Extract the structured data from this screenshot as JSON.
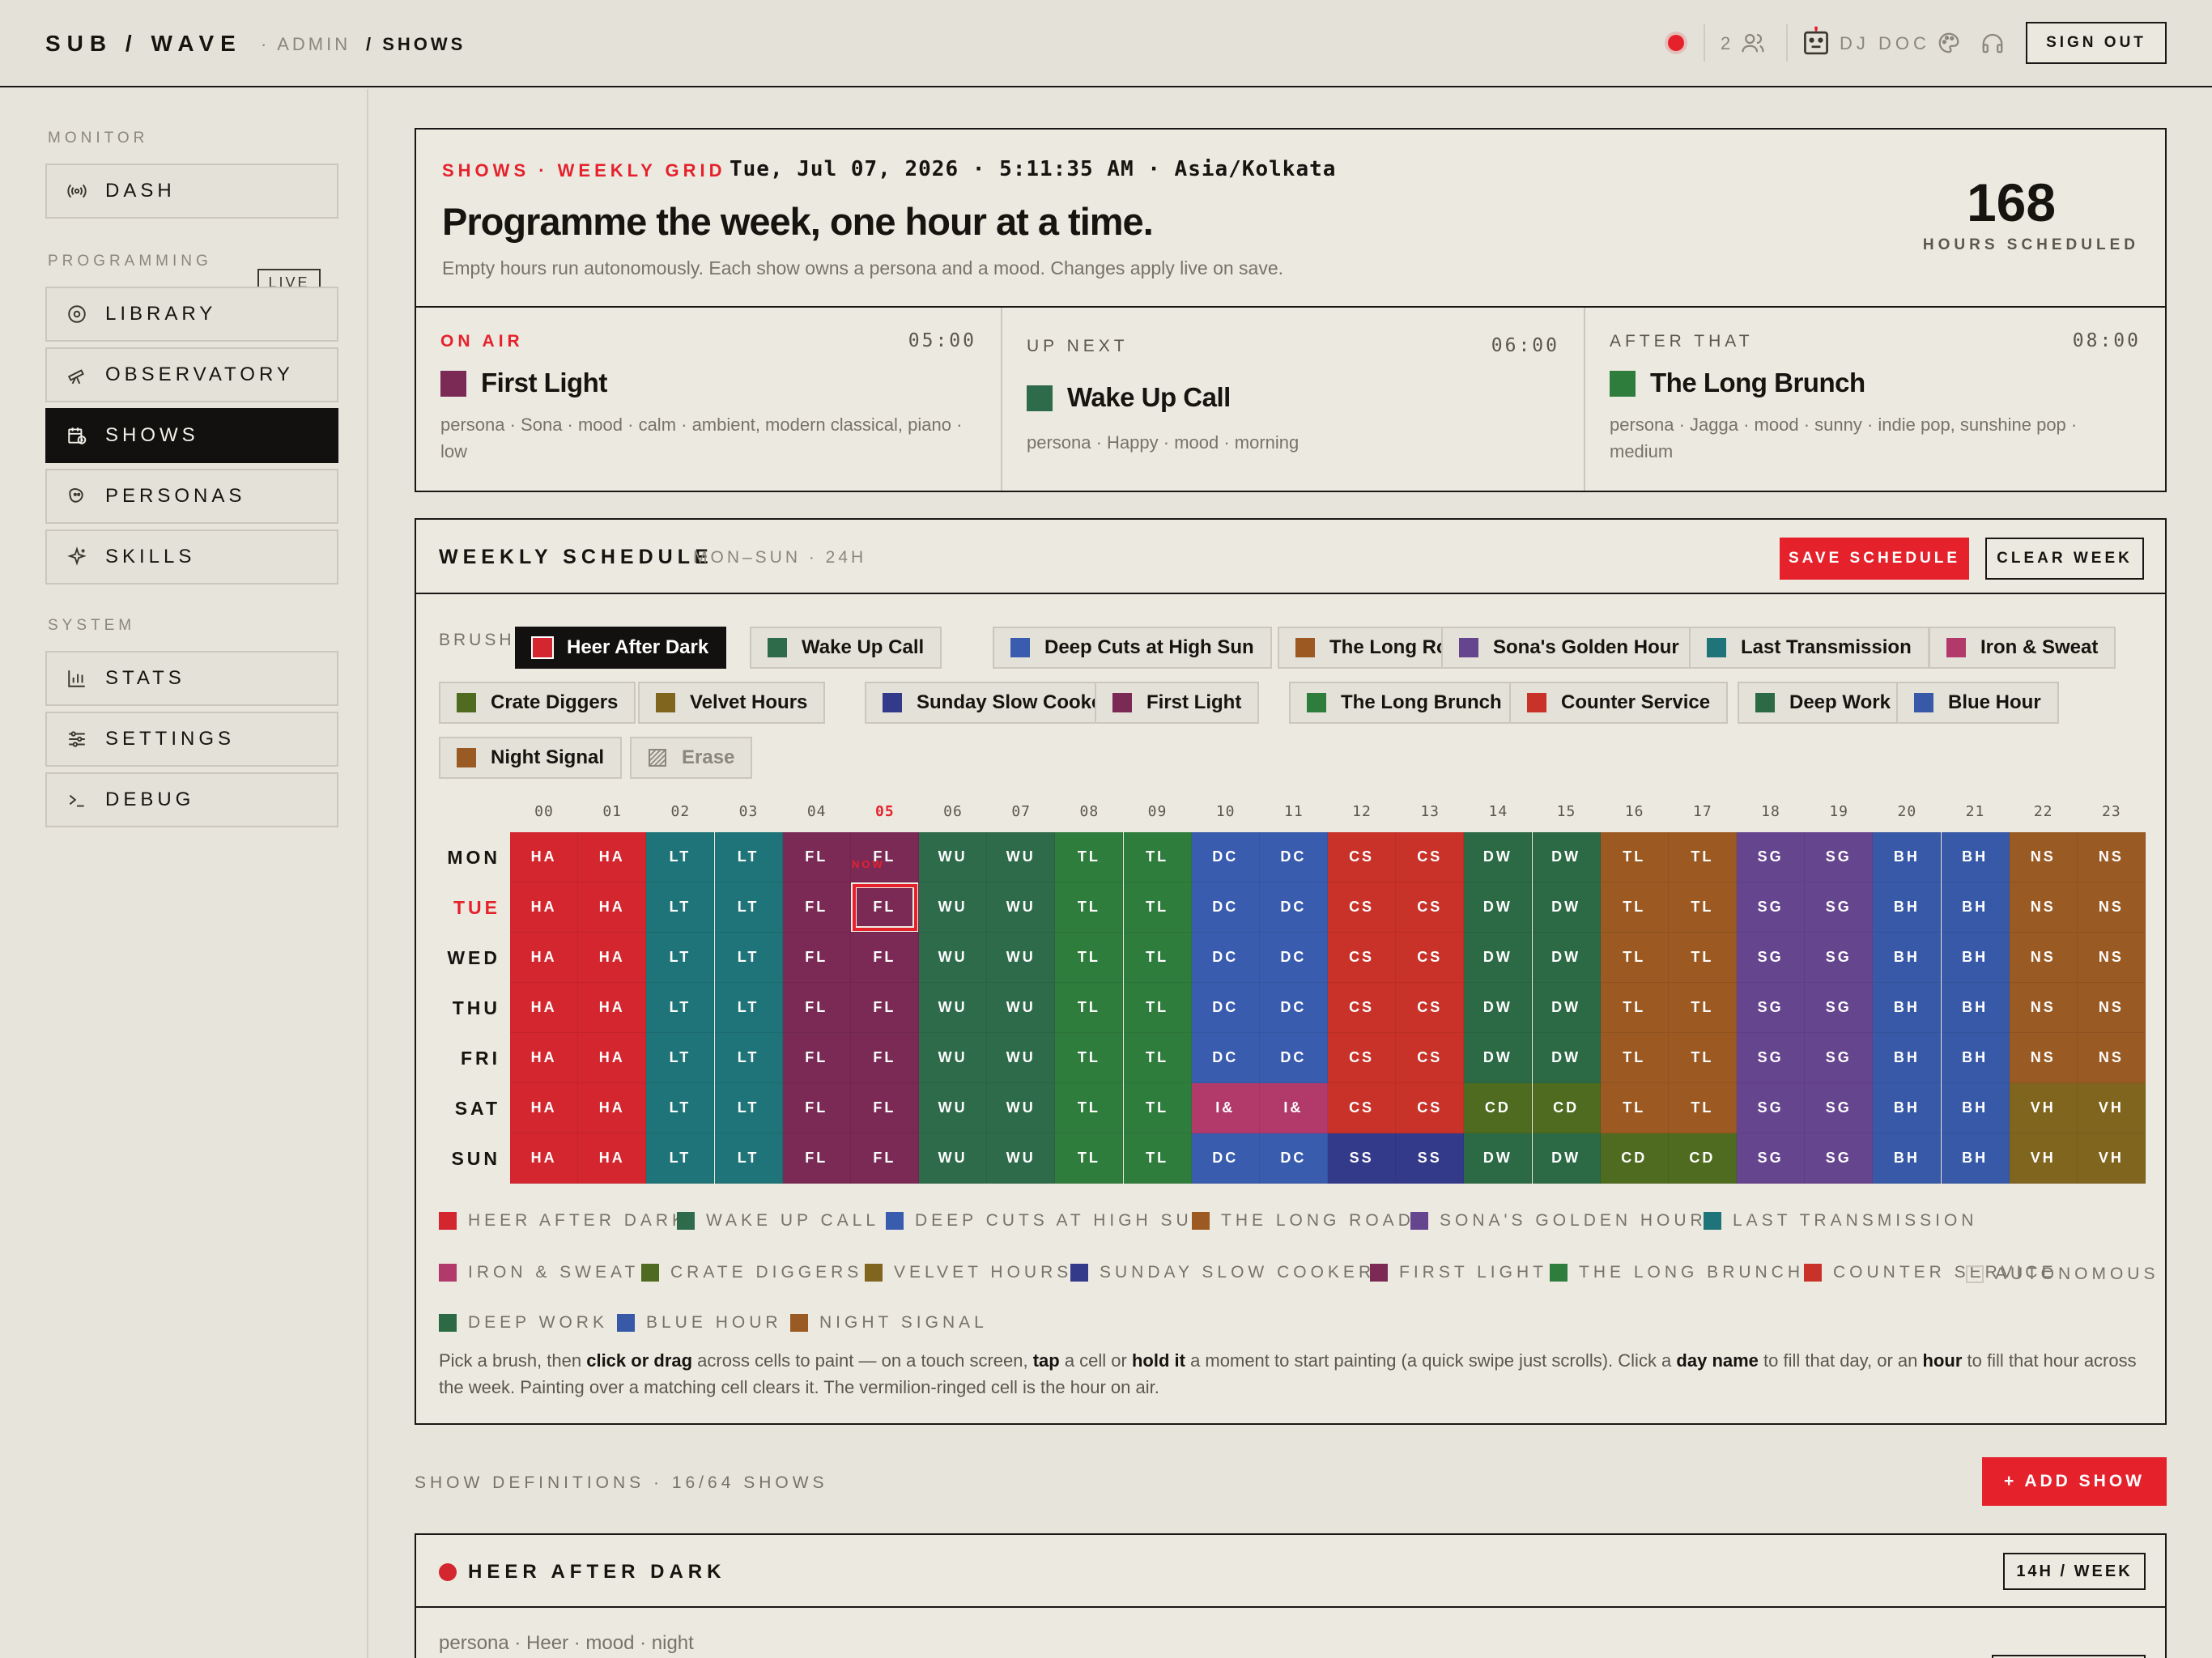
{
  "topbar": {
    "brand": "SUB / WAVE",
    "crumb_admin": "· ADMIN",
    "crumb_shows": "/ SHOWS",
    "listeners": "2",
    "dj_name": "DJ DOC",
    "sign_out": "SIGN OUT",
    "icons": [
      "record-dot-icon",
      "listeners-icon",
      "robot-icon",
      "palette-icon",
      "headphones-icon"
    ]
  },
  "sidebar": {
    "sections": [
      {
        "heading": "MONITOR",
        "items": [
          {
            "label": "DASH",
            "icon": "broadcast-icon",
            "badge": "LIVE"
          }
        ]
      },
      {
        "heading": "PROGRAMMING",
        "items": [
          {
            "label": "LIBRARY",
            "icon": "disc-icon"
          },
          {
            "label": "OBSERVATORY",
            "icon": "telescope-icon"
          },
          {
            "label": "SHOWS",
            "icon": "calendar-icon",
            "active": true
          },
          {
            "label": "PERSONAS",
            "icon": "persona-icon"
          },
          {
            "label": "SKILLS",
            "icon": "sparkle-icon"
          }
        ]
      },
      {
        "heading": "SYSTEM",
        "items": [
          {
            "label": "STATS",
            "icon": "bar-chart-icon"
          },
          {
            "label": "SETTINGS",
            "icon": "sliders-icon"
          },
          {
            "label": "DEBUG",
            "icon": "terminal-icon"
          }
        ]
      }
    ]
  },
  "hero": {
    "eyebrow": "SHOWS · WEEKLY GRID",
    "clock": "Tue, Jul 07, 2026 · 5:11:35 AM · Asia/Kolkata",
    "title": "Programme the week, one hour at a time.",
    "subtitle": "Empty hours run autonomously. Each show owns a persona and a mood. Changes apply live on save.",
    "hours_value": "168",
    "hours_label": "HOURS SCHEDULED"
  },
  "slots": [
    {
      "label": "ON AIR",
      "time": "05:00",
      "name": "First Light",
      "color": "#7a2a55",
      "meta": "persona · Sona · mood · calm · ambient, modern classical, piano · low"
    },
    {
      "label": "UP NEXT",
      "time": "06:00",
      "name": "Wake Up Call",
      "color": "#2e6b4b",
      "meta": "persona · Happy · mood · morning"
    },
    {
      "label": "AFTER THAT",
      "time": "08:00",
      "name": "The Long Brunch",
      "color": "#2f7d3d",
      "meta": "persona · Jagga · mood · sunny · indie pop, sunshine pop · medium"
    }
  ],
  "schedule": {
    "title": "WEEKLY SCHEDULE",
    "range": "MON–SUN · 24H",
    "save_label": "SAVE SCHEDULE",
    "clear_label": "CLEAR WEEK",
    "brush_label": "BRUSH",
    "erase_label": "Erase",
    "now_tag": "NOW",
    "autonomous_label": "AUTONOMOUS",
    "hours": [
      "00",
      "01",
      "02",
      "03",
      "04",
      "05",
      "06",
      "07",
      "08",
      "09",
      "10",
      "11",
      "12",
      "13",
      "14",
      "15",
      "16",
      "17",
      "18",
      "19",
      "20",
      "21",
      "22",
      "23"
    ],
    "current_hour": 5,
    "days": [
      "MON",
      "TUE",
      "WED",
      "THU",
      "FRI",
      "SAT",
      "SUN"
    ],
    "current_day": 1,
    "shows": {
      "HA": {
        "name": "Heer After Dark",
        "color": "#d3262e"
      },
      "WU": {
        "name": "Wake Up Call",
        "color": "#2e6b4b"
      },
      "DC": {
        "name": "Deep Cuts at High Sun",
        "color": "#3a5cae"
      },
      "TL": {
        "name": "The Long Road",
        "color": "#9c5a22"
      },
      "SG": {
        "name": "Sona's Golden Hour",
        "color": "#66458f"
      },
      "LT": {
        "name": "Last Transmission",
        "color": "#1e7478"
      },
      "I&": {
        "name": "Iron & Sweat",
        "color": "#b23a6b"
      },
      "CD": {
        "name": "Crate Diggers",
        "color": "#4e6b1f"
      },
      "VH": {
        "name": "Velvet Hours",
        "color": "#80651e"
      },
      "SS": {
        "name": "Sunday Slow Cooker",
        "color": "#343a8a"
      },
      "FL": {
        "name": "First Light",
        "color": "#7a2a55"
      },
      "LB": {
        "name": "The Long Brunch",
        "color": "#2f7d3d"
      },
      "CS": {
        "name": "Counter Service",
        "color": "#c83229"
      },
      "DW": {
        "name": "Deep Work",
        "color": "#2c6a45"
      },
      "BH": {
        "name": "Blue Hour",
        "color": "#3859a8"
      },
      "NS": {
        "name": "Night Signal",
        "color": "#9a5a24"
      }
    },
    "brush_order": [
      "HA",
      "WU",
      "DC",
      "TL",
      "SG",
      "LT",
      "I&",
      "CD",
      "VH",
      "SS",
      "FL",
      "LB",
      "CS",
      "DW",
      "BH",
      "NS"
    ],
    "selected_brush": "HA",
    "grid": [
      [
        "HA",
        "HA",
        "LT",
        "LT",
        "FL",
        "FL",
        "WU",
        "WU",
        "LB",
        "LB",
        "DC",
        "DC",
        "CS",
        "CS",
        "DW",
        "DW",
        "TL",
        "TL",
        "SG",
        "SG",
        "BH",
        "BH",
        "NS",
        "NS"
      ],
      [
        "HA",
        "HA",
        "LT",
        "LT",
        "FL",
        "FL",
        "WU",
        "WU",
        "LB",
        "LB",
        "DC",
        "DC",
        "CS",
        "CS",
        "DW",
        "DW",
        "TL",
        "TL",
        "SG",
        "SG",
        "BH",
        "BH",
        "NS",
        "NS"
      ],
      [
        "HA",
        "HA",
        "LT",
        "LT",
        "FL",
        "FL",
        "WU",
        "WU",
        "LB",
        "LB",
        "DC",
        "DC",
        "CS",
        "CS",
        "DW",
        "DW",
        "TL",
        "TL",
        "SG",
        "SG",
        "BH",
        "BH",
        "NS",
        "NS"
      ],
      [
        "HA",
        "HA",
        "LT",
        "LT",
        "FL",
        "FL",
        "WU",
        "WU",
        "LB",
        "LB",
        "DC",
        "DC",
        "CS",
        "CS",
        "DW",
        "DW",
        "TL",
        "TL",
        "SG",
        "SG",
        "BH",
        "BH",
        "NS",
        "NS"
      ],
      [
        "HA",
        "HA",
        "LT",
        "LT",
        "FL",
        "FL",
        "WU",
        "WU",
        "LB",
        "LB",
        "DC",
        "DC",
        "CS",
        "CS",
        "DW",
        "DW",
        "TL",
        "TL",
        "SG",
        "SG",
        "BH",
        "BH",
        "NS",
        "NS"
      ],
      [
        "HA",
        "HA",
        "LT",
        "LT",
        "FL",
        "FL",
        "WU",
        "WU",
        "LB",
        "LB",
        "I&",
        "I&",
        "CS",
        "CS",
        "CD",
        "CD",
        "TL",
        "TL",
        "SG",
        "SG",
        "BH",
        "BH",
        "VH",
        "VH"
      ],
      [
        "HA",
        "HA",
        "LT",
        "LT",
        "FL",
        "FL",
        "WU",
        "WU",
        "LB",
        "LB",
        "DC",
        "DC",
        "SS",
        "SS",
        "DW",
        "DW",
        "CD",
        "CD",
        "SG",
        "SG",
        "BH",
        "BH",
        "VH",
        "VH"
      ]
    ],
    "cell_labels": {
      "LB": "TL"
    },
    "help": [
      {
        "t": "Pick a brush, then "
      },
      {
        "b": "click or drag"
      },
      {
        "t": " across cells to paint — on a touch screen, "
      },
      {
        "b": "tap"
      },
      {
        "t": " a cell or "
      },
      {
        "b": "hold it"
      },
      {
        "t": " a moment to start painting (a quick swipe just scrolls). Click a "
      },
      {
        "b": "day name"
      },
      {
        "t": " to fill that day, or an "
      },
      {
        "b": "hour"
      },
      {
        "t": " to fill that hour across the week. Painting over a matching cell clears it. The vermilion-ringed cell is the hour on air."
      }
    ]
  },
  "definitions": {
    "label": "SHOW DEFINITIONS · 16/64 SHOWS",
    "add_label": "+ ADD SHOW",
    "first_card": {
      "name": "HEER AFTER DARK",
      "hours": "14H / WEEK",
      "meta": "persona · Heer · mood · night"
    }
  }
}
